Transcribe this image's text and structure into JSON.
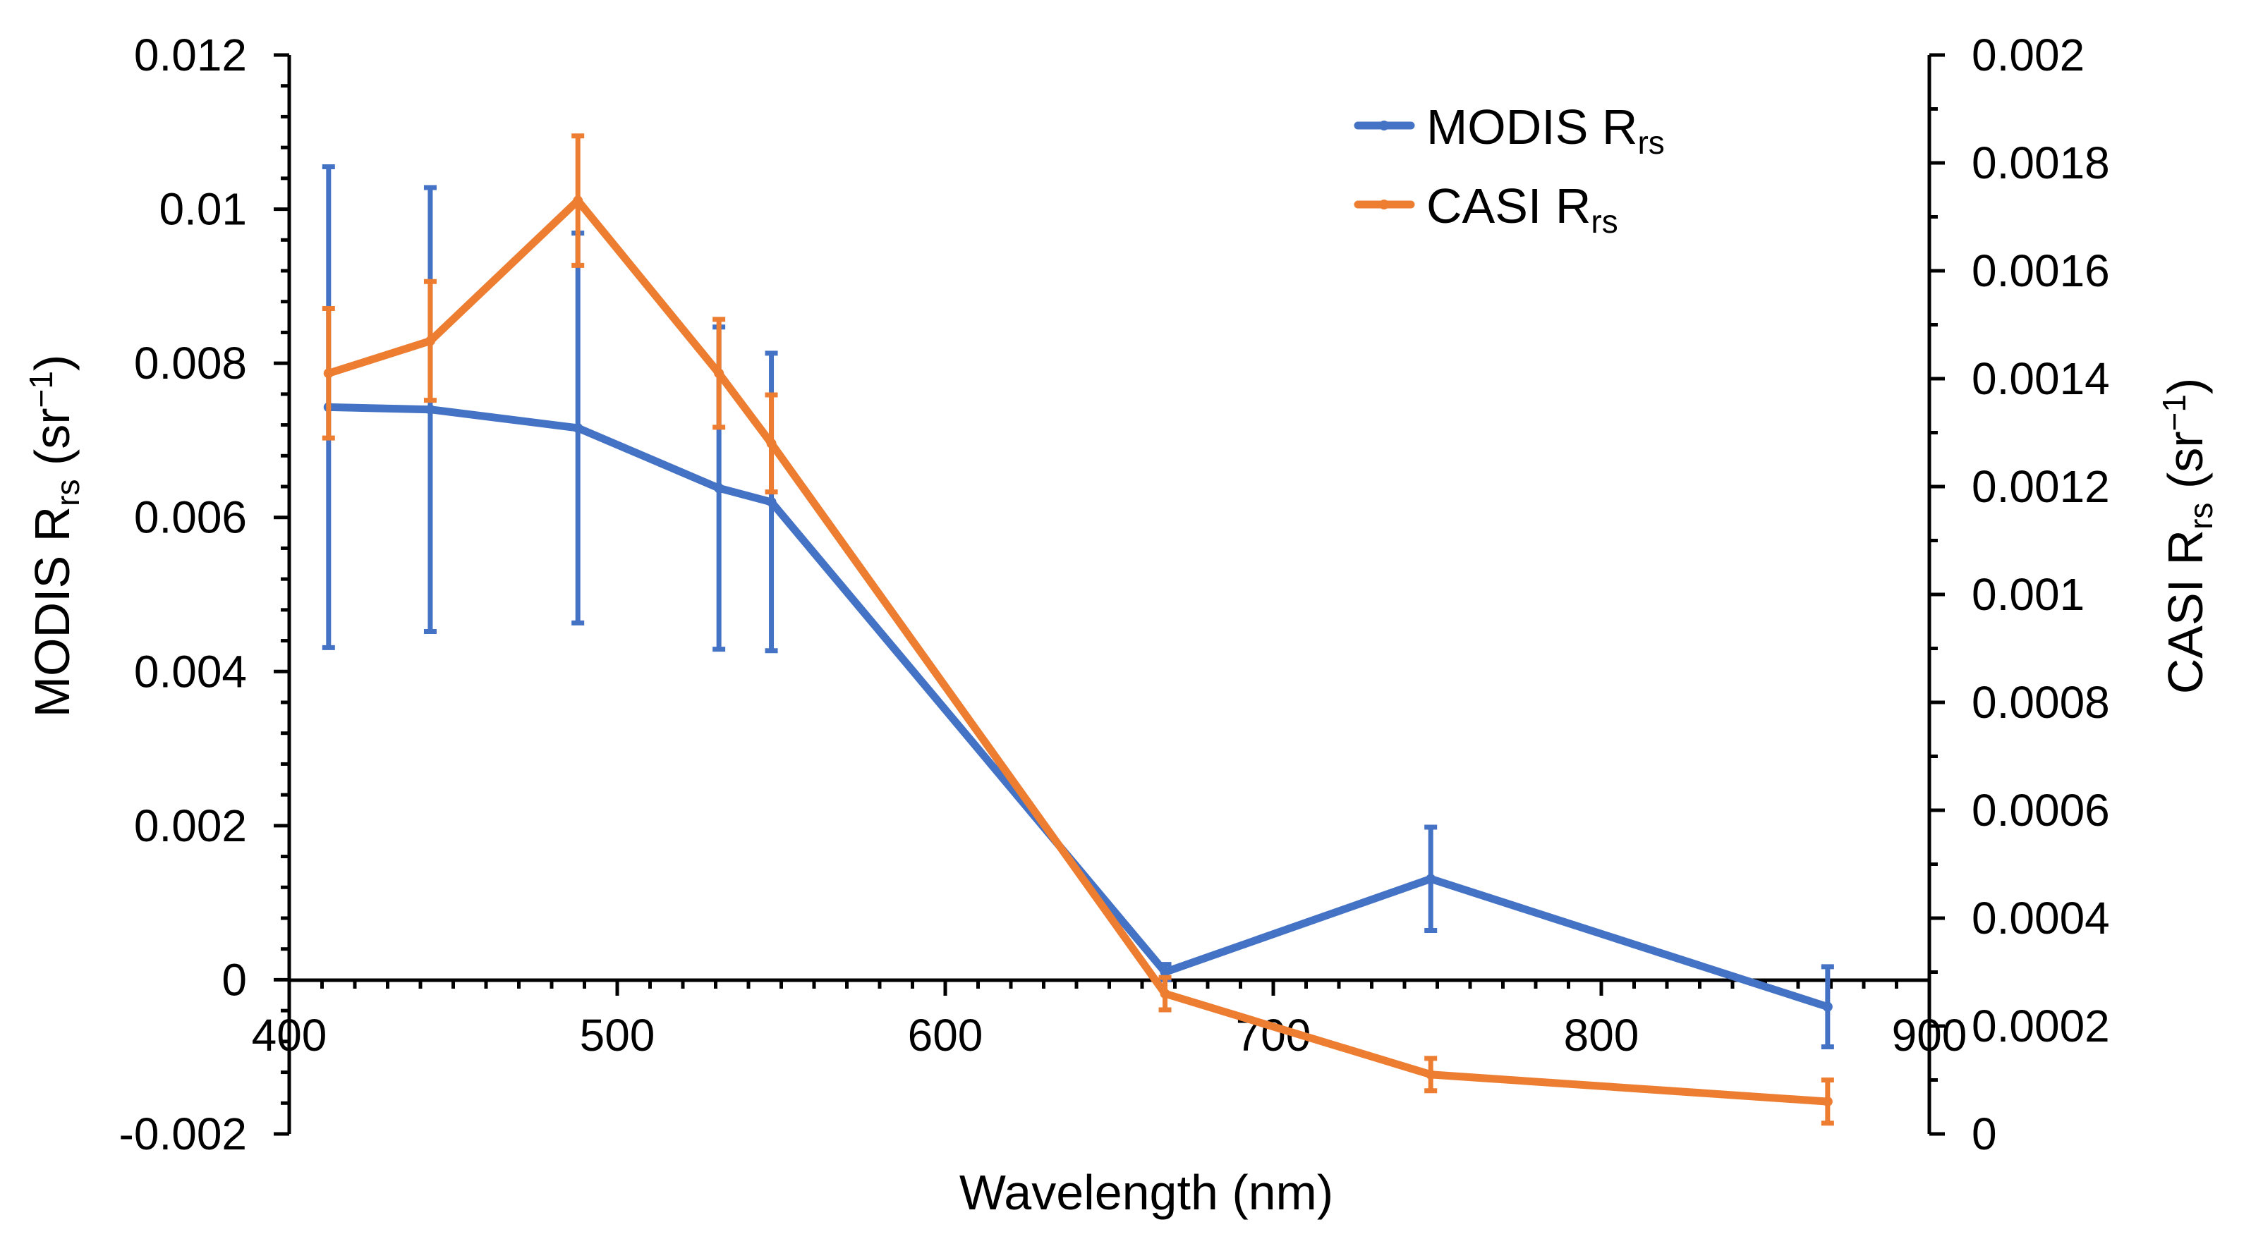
{
  "chart_data": {
    "type": "line",
    "title": "",
    "xlabel": "Wavelength (nm)",
    "ylabel_left": {
      "main": "MODIS R",
      "sub": "rs",
      "unit_open": " (sr",
      "sup": "−1",
      "unit_close": ")"
    },
    "ylabel_right": {
      "main": "CASI R",
      "sub": "rs",
      "unit_open": " (sr",
      "sup": "−1",
      "unit_close": ")"
    },
    "xlim": [
      400,
      900
    ],
    "x_ticks": [
      400,
      500,
      600,
      700,
      800,
      900
    ],
    "x_tick_labels": [
      "400",
      "500",
      "600",
      "700",
      "800",
      "900"
    ],
    "ylim_left": [
      -0.002,
      0.012
    ],
    "y_left_ticks": [
      -0.002,
      0,
      0.002,
      0.004,
      0.006,
      0.008,
      0.01,
      0.012
    ],
    "y_left_tick_labels": [
      "-0.002",
      "0",
      "0.002",
      "0.004",
      "0.006",
      "0.008",
      "0.01",
      "0.012"
    ],
    "ylim_right": [
      0,
      0.002
    ],
    "y_right_ticks": [
      0,
      0.0002,
      0.0004,
      0.0006,
      0.0008,
      0.001,
      0.0012,
      0.0014,
      0.0016,
      0.0018,
      0.002
    ],
    "y_right_tick_labels": [
      "0",
      "0.0002",
      "0.0004",
      "0.0006",
      "0.0008",
      "0.001",
      "0.0012",
      "0.0014",
      "0.0016",
      "0.0018",
      "0.002"
    ],
    "legend_position": "top-center",
    "series": [
      {
        "name": "MODIS",
        "name_sub": "rs",
        "legend_label": "MODIS R",
        "axis": "left",
        "color": "#4472C4",
        "x": [
          412,
          443,
          488,
          531,
          547,
          667,
          748,
          869
        ],
        "y": [
          0.00743,
          0.0074,
          0.00716,
          0.00638,
          0.0062,
          0.0001,
          0.00131,
          -0.00035
        ],
        "err": [
          0.00312,
          0.00288,
          0.00253,
          0.00209,
          0.00193,
          0.0001,
          0.00067,
          0.00052
        ]
      },
      {
        "name": "CASI",
        "name_sub": "rs",
        "legend_label": "CASI R",
        "axis": "right",
        "color": "#ED7D31",
        "x": [
          412,
          443,
          488,
          531,
          547,
          667,
          748,
          869
        ],
        "y": [
          0.00141,
          0.00147,
          0.00173,
          0.00141,
          0.00128,
          0.00026,
          0.00011,
          6e-05
        ],
        "err": [
          0.00012,
          0.00011,
          0.00012,
          0.0001,
          9e-05,
          3e-05,
          3e-05,
          4e-05
        ]
      }
    ]
  }
}
